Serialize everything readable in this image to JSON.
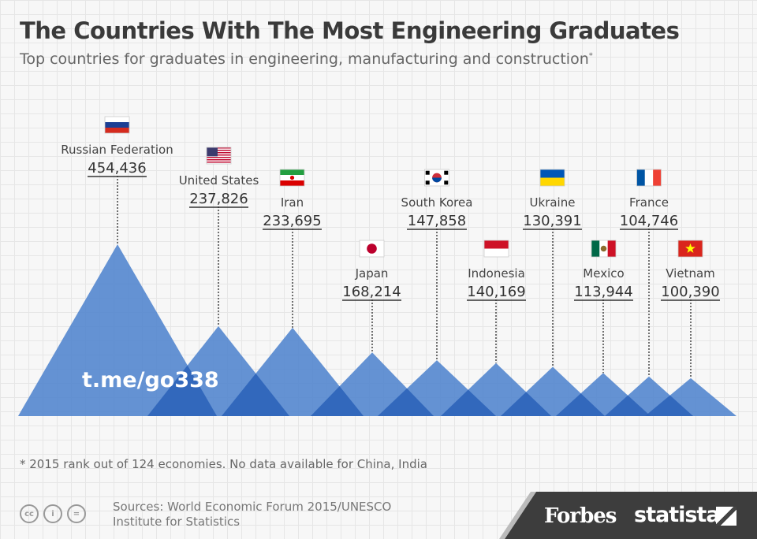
{
  "title": "The Countries With The Most Engineering Graduates",
  "subtitle": "Top countries for graduates in engineering, manufacturing and construction",
  "subtitle_marker": "*",
  "chart_data": {
    "type": "area",
    "categories": [
      "Russian Federation",
      "United States",
      "Iran",
      "Japan",
      "South Korea",
      "Indonesia",
      "Ukraine",
      "Mexico",
      "France",
      "Vietnam"
    ],
    "values": [
      454436,
      237826,
      233695,
      168214,
      147858,
      140169,
      130391,
      113944,
      104746,
      100390
    ],
    "value_labels": [
      "454,436",
      "237,826",
      "233,695",
      "168,214",
      "147,858",
      "140,169",
      "130,391",
      "113,944",
      "104,746",
      "100,390"
    ],
    "series_color": "#4a80cc",
    "flag_icons": [
      "russia-flag-icon",
      "usa-flag-icon",
      "iran-flag-icon",
      "japan-flag-icon",
      "south-korea-flag-icon",
      "indonesia-flag-icon",
      "ukraine-flag-icon",
      "mexico-flag-icon",
      "france-flag-icon",
      "vietnam-flag-icon"
    ],
    "watermark": "t.me/go338"
  },
  "footnote": "* 2015 rank out of 124 economies. No data available for China, India",
  "sources_line1": "Sources: World Economic Forum 2015/UNESCO",
  "sources_line2": "Institute for Statistics",
  "brand_forbes": "Forbes",
  "brand_statista": "statista",
  "license_icons": [
    "cc-icon",
    "by-icon",
    "nd-icon"
  ]
}
